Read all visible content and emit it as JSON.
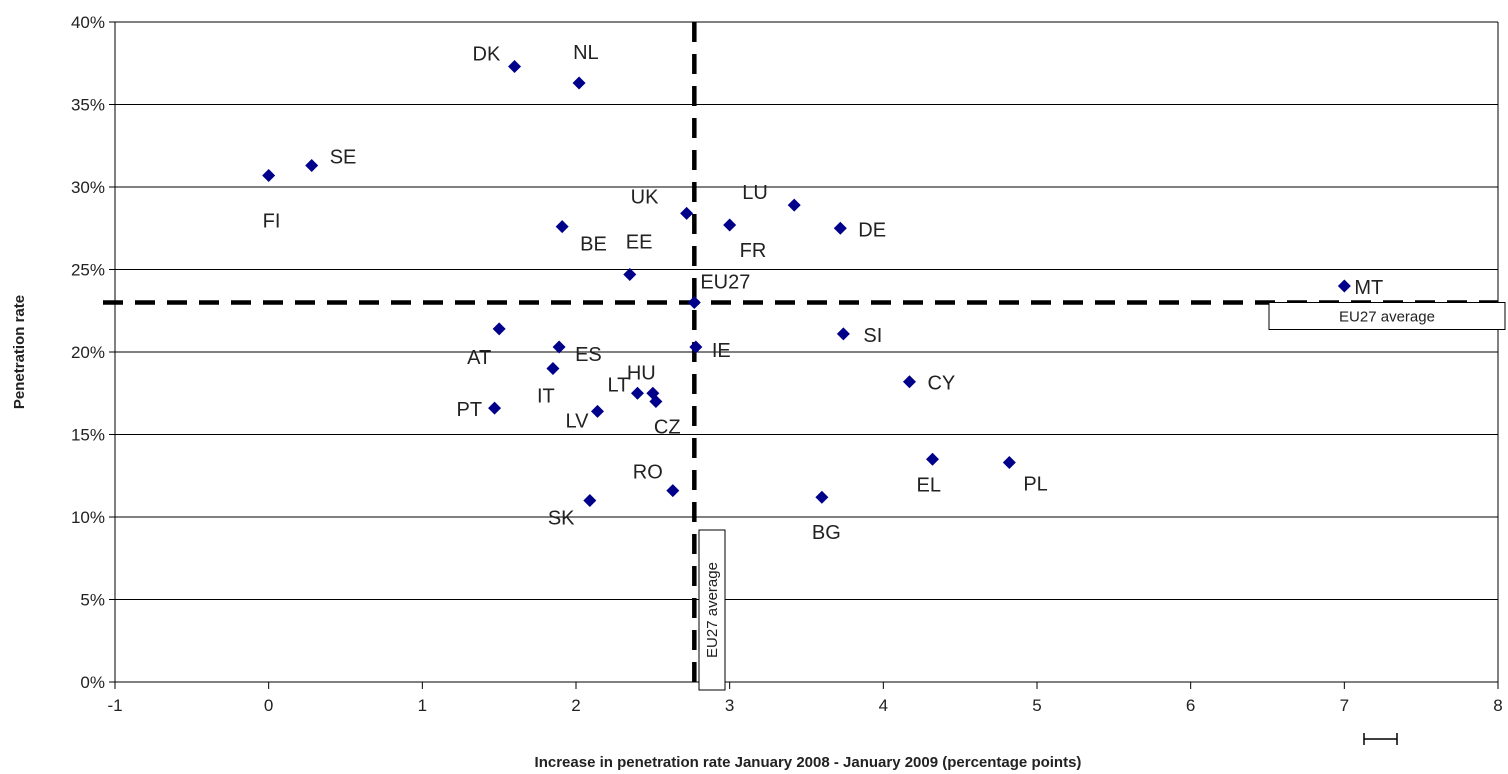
{
  "chart_data": {
    "type": "scatter",
    "xlabel": "Increase in penetration rate January 2008 - January 2009 (percentage points)",
    "ylabel": "Penetration rate",
    "xlim": [
      -1,
      8
    ],
    "ylim": [
      0,
      40
    ],
    "x_ticks": [
      "-1",
      "0",
      "1",
      "2",
      "3",
      "4",
      "5",
      "6",
      "7",
      "8"
    ],
    "y_ticks": [
      "0%",
      "5%",
      "10%",
      "15%",
      "20%",
      "25%",
      "30%",
      "35%",
      "40%"
    ],
    "grid": "horizontal",
    "marker_color": "#00008B",
    "points": [
      {
        "label": "DK",
        "x": 1.6,
        "y": 37.3
      },
      {
        "label": "NL",
        "x": 2.02,
        "y": 36.3
      },
      {
        "label": "SE",
        "x": 0.28,
        "y": 31.3
      },
      {
        "label": "FI",
        "x": 0.0,
        "y": 30.7
      },
      {
        "label": "UK",
        "x": 2.72,
        "y": 28.4
      },
      {
        "label": "LU",
        "x": 3.42,
        "y": 28.9
      },
      {
        "label": "FR",
        "x": 3.0,
        "y": 27.7
      },
      {
        "label": "DE",
        "x": 3.72,
        "y": 27.5
      },
      {
        "label": "BE",
        "x": 1.91,
        "y": 27.6
      },
      {
        "label": "EE",
        "x": 2.35,
        "y": 24.7
      },
      {
        "label": "EU27",
        "x": 2.77,
        "y": 23.0
      },
      {
        "label": "MT",
        "x": 7.0,
        "y": 24.0
      },
      {
        "label": "AT",
        "x": 1.5,
        "y": 21.4
      },
      {
        "label": "ES",
        "x": 1.89,
        "y": 20.3
      },
      {
        "label": "IE",
        "x": 2.78,
        "y": 20.3
      },
      {
        "label": "SI",
        "x": 3.74,
        "y": 21.1
      },
      {
        "label": "IT",
        "x": 1.85,
        "y": 19.0
      },
      {
        "label": "HU",
        "x": 2.5,
        "y": 17.5
      },
      {
        "label": "LT",
        "x": 2.4,
        "y": 17.5
      },
      {
        "label": "CZ",
        "x": 2.52,
        "y": 17.0
      },
      {
        "label": "CY",
        "x": 4.17,
        "y": 18.2
      },
      {
        "label": "PT",
        "x": 1.47,
        "y": 16.6
      },
      {
        "label": "LV",
        "x": 2.14,
        "y": 16.4
      },
      {
        "label": "EL",
        "x": 4.32,
        "y": 13.5
      },
      {
        "label": "PL",
        "x": 4.82,
        "y": 13.3
      },
      {
        "label": "RO",
        "x": 2.63,
        "y": 11.6
      },
      {
        "label": "BG",
        "x": 3.6,
        "y": 11.2
      },
      {
        "label": "SK",
        "x": 2.09,
        "y": 11.0
      }
    ],
    "reference_lines": {
      "horizontal": {
        "y": 23.0,
        "label": "EU27 average"
      },
      "vertical": {
        "x": 2.77,
        "label": "EU27 average"
      }
    }
  }
}
